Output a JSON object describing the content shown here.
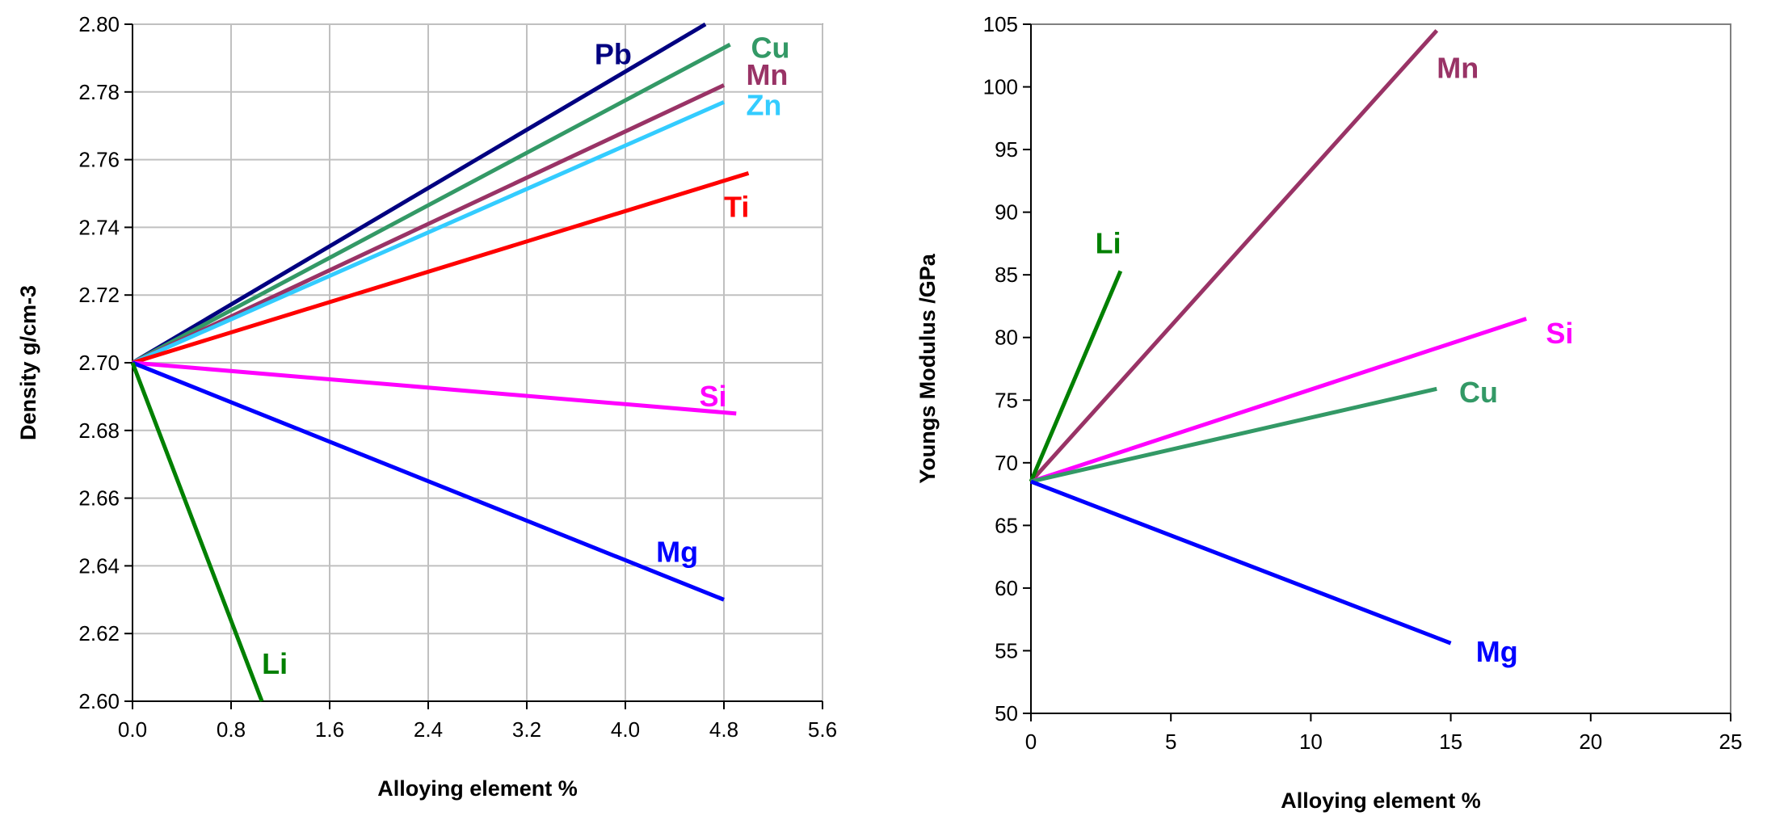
{
  "chart_data": [
    {
      "type": "line",
      "xlabel": "Alloying element %",
      "ylabel": "Density g/cm-3",
      "xlim": [
        0,
        5.6
      ],
      "ylim": [
        2.6,
        2.8
      ],
      "x_ticks": [
        "0.0",
        "0.8",
        "1.6",
        "2.4",
        "3.2",
        "4.0",
        "4.8",
        "5.6"
      ],
      "y_ticks": [
        "2.60",
        "2.62",
        "2.64",
        "2.66",
        "2.68",
        "2.70",
        "2.72",
        "2.74",
        "2.76",
        "2.78",
        "2.80"
      ],
      "grid": true,
      "series": [
        {
          "name": "Pb",
          "color": "#000080",
          "points": [
            [
              0,
              2.7
            ],
            [
              4.65,
              2.8
            ]
          ],
          "label_at": [
            3.75,
            2.791
          ]
        },
        {
          "name": "Cu",
          "color": "#339966",
          "points": [
            [
              0,
              2.7
            ],
            [
              4.85,
              2.794
            ]
          ],
          "label_at": [
            5.02,
            2.793
          ]
        },
        {
          "name": "Mn",
          "color": "#993366",
          "points": [
            [
              0,
              2.7
            ],
            [
              4.8,
              2.782
            ]
          ],
          "label_at": [
            4.98,
            2.785
          ]
        },
        {
          "name": "Zn",
          "color": "#33CCFF",
          "points": [
            [
              0,
              2.7
            ],
            [
              4.8,
              2.777
            ]
          ],
          "label_at": [
            4.98,
            2.776
          ]
        },
        {
          "name": "Ti",
          "color": "#FF0000",
          "points": [
            [
              0,
              2.7
            ],
            [
              5.0,
              2.756
            ]
          ],
          "label_at": [
            4.8,
            2.746
          ]
        },
        {
          "name": "Si",
          "color": "#FF00FF",
          "points": [
            [
              0,
              2.7
            ],
            [
              4.9,
              2.685
            ]
          ],
          "label_at": [
            4.6,
            2.69
          ]
        },
        {
          "name": "Mg",
          "color": "#0000FF",
          "points": [
            [
              0,
              2.7
            ],
            [
              4.8,
              2.63
            ]
          ],
          "label_at": [
            4.25,
            2.644
          ]
        },
        {
          "name": "Li",
          "color": "#008000",
          "points": [
            [
              0,
              2.7
            ],
            [
              1.05,
              2.6
            ]
          ],
          "label_at": [
            1.05,
            2.611
          ]
        }
      ]
    },
    {
      "type": "line",
      "xlabel": "Alloying element %",
      "ylabel": "Youngs Modulus /GPa",
      "xlim": [
        0,
        25
      ],
      "ylim": [
        50,
        105
      ],
      "x_ticks": [
        "0",
        "5",
        "10",
        "15",
        "20",
        "25"
      ],
      "y_ticks": [
        "50",
        "55",
        "60",
        "65",
        "70",
        "75",
        "80",
        "85",
        "90",
        "95",
        "100",
        "105"
      ],
      "grid": false,
      "series": [
        {
          "name": "Mn",
          "color": "#993366",
          "points": [
            [
              0,
              68.5
            ],
            [
              14.5,
              104.5
            ]
          ],
          "label_at": [
            14.5,
            101.5
          ]
        },
        {
          "name": "Li",
          "color": "#008000",
          "points": [
            [
              0,
              68.5
            ],
            [
              3.2,
              85.3
            ]
          ],
          "label_at": [
            2.3,
            87.5
          ]
        },
        {
          "name": "Si",
          "color": "#FF00FF",
          "points": [
            [
              0,
              68.5
            ],
            [
              17.7,
              81.5
            ]
          ],
          "label_at": [
            18.4,
            80.3
          ]
        },
        {
          "name": "Cu",
          "color": "#339966",
          "points": [
            [
              0,
              68.5
            ],
            [
              14.5,
              75.9
            ]
          ],
          "label_at": [
            15.3,
            75.6
          ]
        },
        {
          "name": "Mg",
          "color": "#0000FF",
          "points": [
            [
              0,
              68.5
            ],
            [
              15.0,
              55.6
            ]
          ],
          "label_at": [
            15.9,
            54.9
          ]
        }
      ]
    }
  ]
}
